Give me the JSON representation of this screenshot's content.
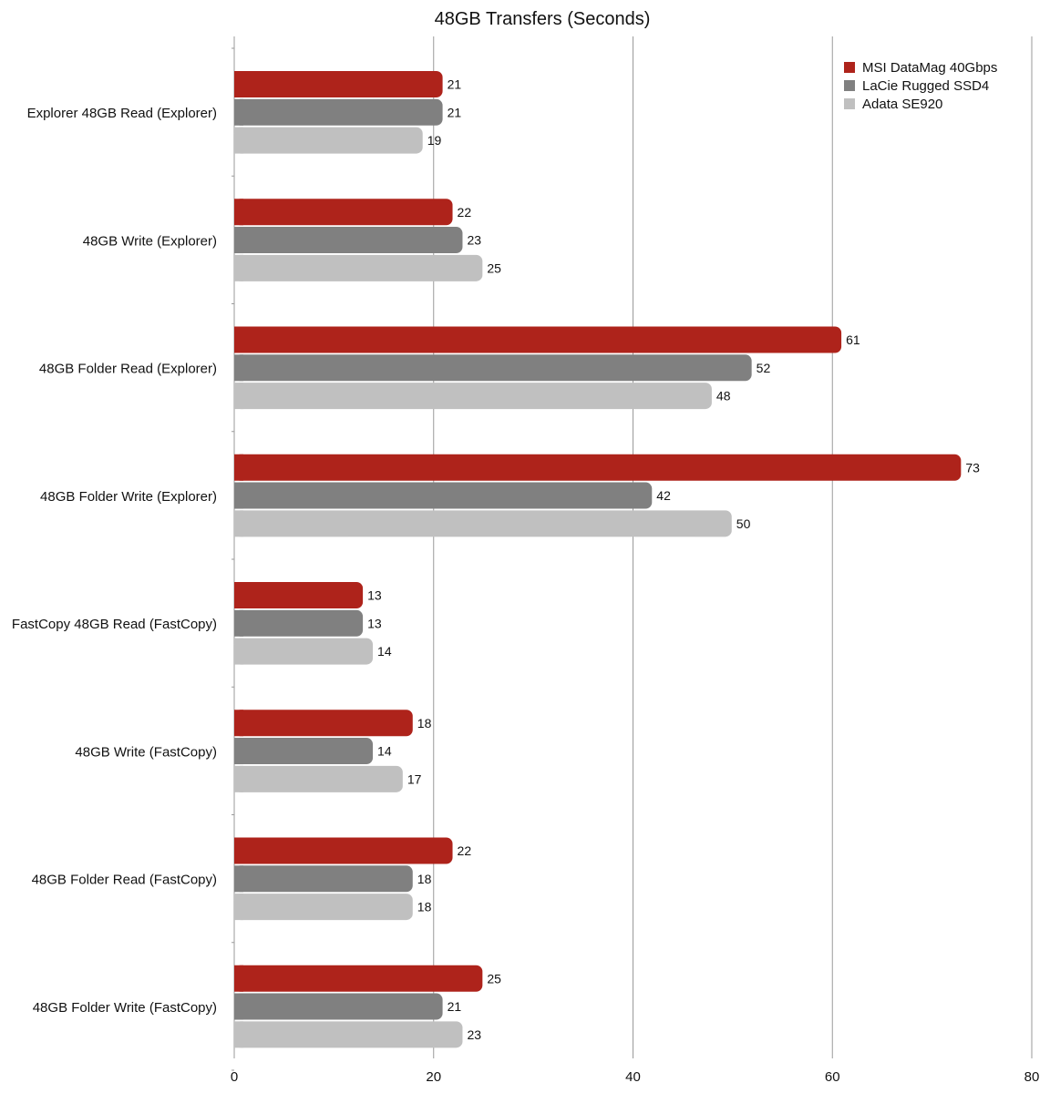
{
  "chart_data": {
    "type": "bar",
    "orientation": "horizontal",
    "title": "48GB Transfers (Seconds)",
    "xlabel": "",
    "ylabel": "",
    "xlim": [
      0,
      80
    ],
    "x_ticks": [
      0,
      20,
      40,
      60,
      80
    ],
    "grid": "vertical",
    "legend_position": "top-right",
    "categories": [
      "Explorer 48GB Read (Explorer)",
      "48GB Write (Explorer)",
      "48GB Folder Read (Explorer)",
      "48GB Folder Write (Explorer)",
      "FastCopy 48GB Read (FastCopy)",
      "48GB Write (FastCopy)",
      "48GB Folder Read (FastCopy)",
      "48GB Folder Write (FastCopy)"
    ],
    "series": [
      {
        "name": "MSI DataMag 40Gbps",
        "color": "#ae231b",
        "values": [
          21,
          22,
          61,
          73,
          13,
          18,
          22,
          25
        ]
      },
      {
        "name": "LaCie Rugged SSD4",
        "color": "#808080",
        "values": [
          21,
          23,
          52,
          42,
          13,
          14,
          18,
          21
        ]
      },
      {
        "name": "Adata SE920",
        "color": "#c0c0c0",
        "values": [
          19,
          25,
          48,
          50,
          14,
          17,
          18,
          23
        ]
      }
    ]
  }
}
